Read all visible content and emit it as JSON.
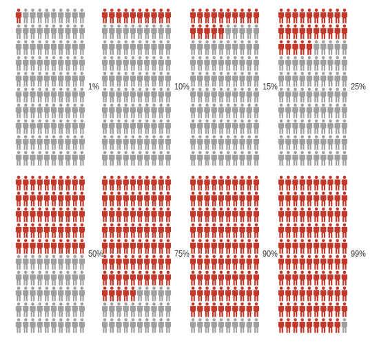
{
  "colors": {
    "highlight": "#c0392b",
    "base": "#a0a0a0"
  },
  "icon": "person-icon",
  "chart_data": {
    "type": "pictograph",
    "units_per_panel": 100,
    "grid": {
      "columns": 10,
      "rows": 10
    },
    "panels": [
      {
        "value": 1,
        "label": "1%"
      },
      {
        "value": 10,
        "label": "10%"
      },
      {
        "value": 15,
        "label": "15%"
      },
      {
        "value": 25,
        "label": "25%"
      },
      {
        "value": 50,
        "label": "50%"
      },
      {
        "value": 75,
        "label": "75%"
      },
      {
        "value": 90,
        "label": "90%"
      },
      {
        "value": 99,
        "label": "99%"
      }
    ]
  }
}
